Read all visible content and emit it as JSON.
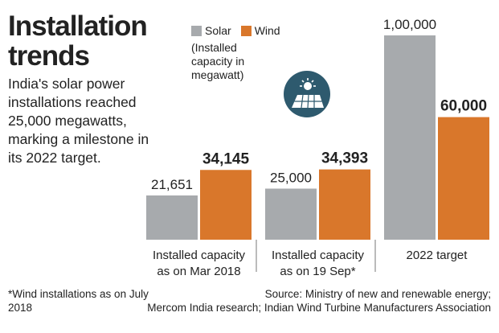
{
  "header": {
    "title_line1": "Installation",
    "title_line2": "trends",
    "subtitle": "India's solar power installations reached 25,000 megawatts, marking a milestone in its 2022 target."
  },
  "legend": {
    "solar": "Solar",
    "wind": "Wind",
    "note": "(Installed capacity in megawatt)"
  },
  "icon": "solar-panel-sun-icon",
  "colors": {
    "solar": "#a7aaad",
    "wind": "#d9772b",
    "icon_bg": "#2e5a6e"
  },
  "chart_data": {
    "type": "bar",
    "categories": [
      "Installed capacity\nas on Mar 2018",
      "Installed capacity\nas on 19 Sep*",
      "2022 target"
    ],
    "series": [
      {
        "name": "Solar",
        "values": [
          21651,
          25000,
          100000
        ],
        "labels": [
          "21,651",
          "25,000",
          "1,00,000"
        ]
      },
      {
        "name": "Wind",
        "values": [
          34145,
          34393,
          60000
        ],
        "labels": [
          "34,145",
          "34,393",
          "60,000"
        ]
      }
    ],
    "ylim": [
      0,
      100000
    ]
  },
  "footer": {
    "footnote": "*Wind installations as on July 2018",
    "source_line1": "Source: Ministry of new and renewable energy;",
    "source_line2": "Mercom India research; Indian Wind Turbine Manufacturers Association"
  }
}
